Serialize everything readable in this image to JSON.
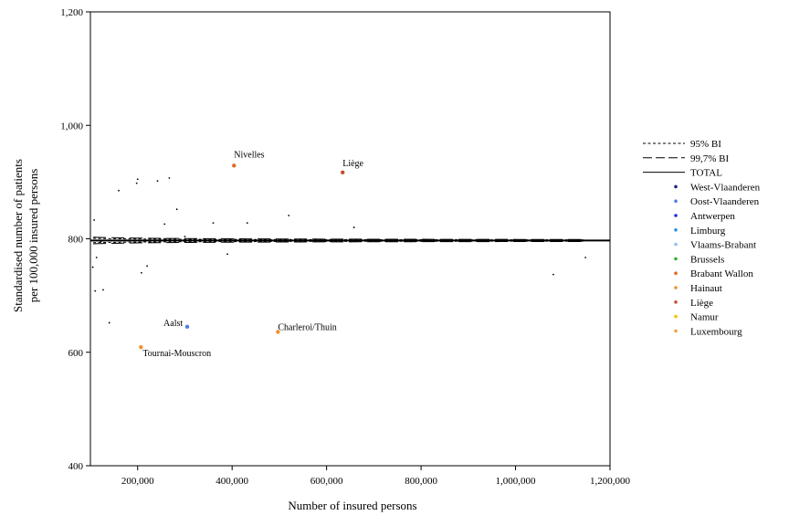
{
  "chart_data": {
    "type": "scatter",
    "title": "",
    "xlabel": "Number of insured persons",
    "ylabel_lines": [
      "Standardised number of patients",
      "per 100,000 insured persons"
    ],
    "xlim": [
      100000,
      1200000
    ],
    "ylim": [
      400,
      1200
    ],
    "x_ticks": [
      200000,
      400000,
      600000,
      800000,
      1000000,
      1200000
    ],
    "x_tick_labels": [
      "200,000",
      "400,000",
      "600,000",
      "800,000",
      "1,000,000",
      "1,200,000"
    ],
    "y_ticks": [
      400,
      600,
      800,
      1000,
      1200
    ],
    "y_tick_labels": [
      "400",
      "600",
      "800",
      "1,000",
      "1,200"
    ],
    "grid": false,
    "legend_position": "right",
    "total": 797,
    "curve_x_range": [
      106000,
      1148000
    ],
    "curves": [
      {
        "name": "95% BI",
        "dash": "dotted",
        "z": 1.96
      },
      {
        "name": "99,7% BI",
        "dash": "longdash",
        "z": 3
      }
    ],
    "total_label": "TOTAL",
    "provinces": [
      {
        "name": "West-Vlaanderen",
        "color": "#1f1f8f"
      },
      {
        "name": "Oost-Vlaanderen",
        "color": "#4f7fe0"
      },
      {
        "name": "Antwerpen",
        "color": "#1f2fe0"
      },
      {
        "name": "Limburg",
        "color": "#2f8fe8"
      },
      {
        "name": "Vlaams-Brabant",
        "color": "#8fc0f0"
      },
      {
        "name": "Brussels",
        "color": "#2fb02f"
      },
      {
        "name": "Brabant Wallon",
        "color": "#e06a20"
      },
      {
        "name": "Hainaut",
        "color": "#f0902f"
      },
      {
        "name": "Liège",
        "color": "#c0502f"
      },
      {
        "name": "Namur",
        "color": "#f5c000"
      },
      {
        "name": "Luxembourg",
        "color": "#f0a040"
      }
    ],
    "points": [
      {
        "x": 105000,
        "y": 750
      },
      {
        "x": 108000,
        "y": 833
      },
      {
        "x": 110000,
        "y": 708
      },
      {
        "x": 113000,
        "y": 767
      },
      {
        "x": 122000,
        "y": 795
      },
      {
        "x": 127000,
        "y": 710
      },
      {
        "x": 140000,
        "y": 652
      },
      {
        "x": 160000,
        "y": 885
      },
      {
        "x": 198000,
        "y": 898
      },
      {
        "x": 200000,
        "y": 905
      },
      {
        "x": 208000,
        "y": 740
      },
      {
        "x": 220000,
        "y": 752
      },
      {
        "x": 242000,
        "y": 902
      },
      {
        "x": 256000,
        "y": 800
      },
      {
        "x": 257000,
        "y": 826
      },
      {
        "x": 260000,
        "y": 800
      },
      {
        "x": 267000,
        "y": 907
      },
      {
        "x": 283000,
        "y": 852
      },
      {
        "x": 300000,
        "y": 804
      },
      {
        "x": 360000,
        "y": 828
      },
      {
        "x": 390000,
        "y": 773
      },
      {
        "x": 432000,
        "y": 828
      },
      {
        "x": 520000,
        "y": 841
      },
      {
        "x": 658000,
        "y": 820
      },
      {
        "x": 1080000,
        "y": 737
      },
      {
        "x": 1148000,
        "y": 767
      },
      {
        "x": 404000,
        "y": 929,
        "label": "Nivelles",
        "province": "Brabant Wallon"
      },
      {
        "x": 634000,
        "y": 917,
        "label": "Liège",
        "province": "Liège"
      },
      {
        "x": 305000,
        "y": 645,
        "label": "Aalst",
        "province": "Oost-Vlaanderen"
      },
      {
        "x": 497000,
        "y": 636,
        "label": "Charleroi/Thuin",
        "province": "Hainaut"
      },
      {
        "x": 207000,
        "y": 609,
        "label": "Tournai-Mouscron",
        "province": "Hainaut"
      }
    ]
  }
}
